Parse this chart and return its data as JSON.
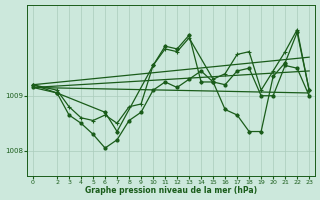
{
  "background_color": "#cce8dc",
  "plot_bg_color": "#cce8dc",
  "grid_color": "#aaccbc",
  "line_color": "#1a5c1a",
  "xlabel": "Graphe pression niveau de la mer (hPa)",
  "ylim": [
    1007.55,
    1010.65
  ],
  "yticks": [
    1008,
    1009
  ],
  "xlim": [
    -0.5,
    23.5
  ],
  "xticks": [
    0,
    2,
    3,
    4,
    5,
    6,
    7,
    8,
    9,
    10,
    11,
    12,
    13,
    14,
    15,
    16,
    17,
    18,
    19,
    20,
    21,
    22,
    23
  ],
  "series1_x": [
    0,
    2,
    3,
    4,
    5,
    6,
    7,
    8,
    9,
    10,
    11,
    12,
    13,
    14,
    15,
    16,
    17,
    18,
    19,
    20,
    21,
    22,
    23
  ],
  "series1_y": [
    1009.15,
    1009.05,
    1008.65,
    1008.5,
    1008.3,
    1008.05,
    1008.2,
    1008.55,
    1008.7,
    1009.1,
    1009.25,
    1009.15,
    1009.3,
    1009.45,
    1009.25,
    1009.2,
    1009.45,
    1009.5,
    1009.0,
    1009.0,
    1009.55,
    1009.5,
    1009.0
  ],
  "series2_x": [
    0,
    2,
    3,
    4,
    5,
    6,
    7,
    8,
    9,
    10,
    11,
    12,
    13,
    15,
    16,
    17,
    18,
    19,
    20,
    21,
    22,
    23
  ],
  "series2_y": [
    1009.2,
    1009.1,
    1008.8,
    1008.6,
    1008.55,
    1008.65,
    1008.5,
    1008.8,
    1008.85,
    1009.55,
    1009.85,
    1009.8,
    1010.05,
    1009.3,
    1009.4,
    1009.75,
    1009.8,
    1009.1,
    1009.45,
    1009.8,
    1010.2,
    1009.1
  ],
  "series3_x": [
    0,
    2,
    6,
    7,
    10,
    11,
    12,
    13,
    14,
    15,
    16,
    17,
    18,
    19,
    20,
    21,
    22,
    23
  ],
  "series3_y": [
    1009.2,
    1009.05,
    1008.7,
    1008.35,
    1009.55,
    1009.9,
    1009.85,
    1010.1,
    1009.25,
    1009.25,
    1008.75,
    1008.65,
    1008.35,
    1008.35,
    1009.35,
    1009.6,
    1010.15,
    1009.1
  ],
  "trend1_x": [
    0,
    23
  ],
  "trend1_y": [
    1009.15,
    1009.45
  ],
  "trend2_x": [
    0,
    23
  ],
  "trend2_y": [
    1009.2,
    1009.7
  ],
  "trend3_x": [
    0,
    23
  ],
  "trend3_y": [
    1009.15,
    1009.05
  ]
}
